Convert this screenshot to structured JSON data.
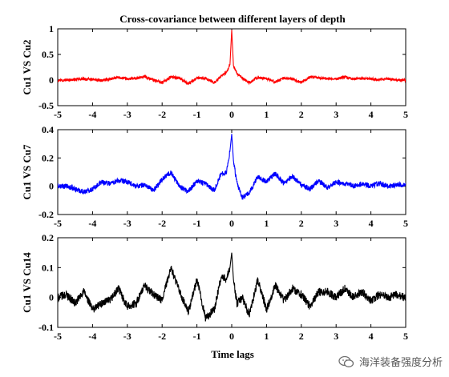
{
  "chart_data": [
    {
      "type": "line",
      "title": "Cross-covariance between different layers of depth",
      "ylabel": "Cu1 VS Cu2",
      "xlabel": "",
      "xlim": [
        -5,
        5
      ],
      "ylim": [
        -0.5,
        1
      ],
      "xticks": [
        "-5",
        "-4",
        "-3",
        "-2",
        "-1",
        "0",
        "1",
        "2",
        "3",
        "4",
        "5"
      ],
      "yticks": [
        "-0.5",
        "0",
        "0.5",
        "1"
      ],
      "color": "#ff0000",
      "series": [
        {
          "x": [
            -5.0,
            -4.75,
            -4.5,
            -4.25,
            -4.0,
            -3.75,
            -3.5,
            -3.25,
            -3.0,
            -2.75,
            -2.5,
            -2.25,
            -2.0,
            -1.75,
            -1.5,
            -1.25,
            -1.0,
            -0.75,
            -0.5,
            -0.3,
            -0.15,
            -0.05,
            0.0,
            0.05,
            0.15,
            0.3,
            0.5,
            0.75,
            1.0,
            1.25,
            1.5,
            1.75,
            2.0,
            2.25,
            2.5,
            2.75,
            3.0,
            3.25,
            3.5,
            3.75,
            4.0,
            4.25,
            4.5,
            4.75,
            5.0
          ],
          "y": [
            0.0,
            0.0,
            0.01,
            0.02,
            0.01,
            -0.01,
            0.02,
            0.05,
            0.02,
            0.03,
            0.07,
            0.0,
            -0.05,
            0.06,
            0.04,
            -0.07,
            0.04,
            0.03,
            -0.05,
            0.08,
            0.15,
            0.3,
            0.98,
            0.28,
            0.12,
            0.04,
            -0.05,
            0.05,
            0.03,
            -0.04,
            0.04,
            0.02,
            -0.05,
            0.06,
            0.04,
            0.03,
            0.02,
            0.06,
            0.02,
            0.03,
            0.02,
            0.01,
            0.02,
            0.0,
            0.0
          ]
        }
      ]
    },
    {
      "type": "line",
      "title": "",
      "ylabel": "Cu1 VS Cu7",
      "xlabel": "",
      "xlim": [
        -5,
        5
      ],
      "ylim": [
        -0.2,
        0.4
      ],
      "xticks": [
        "-5",
        "-4",
        "-3",
        "-2",
        "-1",
        "0",
        "1",
        "2",
        "3",
        "4",
        "5"
      ],
      "yticks": [
        "-0.2",
        "0",
        "0.2",
        "0.4"
      ],
      "color": "#0000ff",
      "series": [
        {
          "x": [
            -5.0,
            -4.75,
            -4.5,
            -4.25,
            -4.0,
            -3.75,
            -3.5,
            -3.25,
            -3.0,
            -2.75,
            -2.5,
            -2.25,
            -2.0,
            -1.75,
            -1.5,
            -1.25,
            -1.0,
            -0.75,
            -0.5,
            -0.3,
            -0.15,
            -0.05,
            0.0,
            0.05,
            0.15,
            0.3,
            0.5,
            0.75,
            1.0,
            1.25,
            1.5,
            1.75,
            2.0,
            2.25,
            2.5,
            2.75,
            3.0,
            3.25,
            3.5,
            3.75,
            4.0,
            4.25,
            4.5,
            4.75,
            5.0
          ],
          "y": [
            0.0,
            0.0,
            -0.02,
            -0.04,
            -0.02,
            0.03,
            0.02,
            0.04,
            0.03,
            0.0,
            0.01,
            -0.03,
            0.05,
            0.1,
            0.0,
            -0.04,
            0.04,
            0.02,
            -0.03,
            0.09,
            0.1,
            0.25,
            0.37,
            0.18,
            0.02,
            -0.08,
            -0.05,
            0.07,
            0.03,
            0.09,
            0.02,
            0.07,
            0.01,
            -0.02,
            0.04,
            -0.01,
            0.03,
            0.02,
            0.0,
            0.02,
            0.0,
            0.02,
            0.0,
            0.01,
            0.01
          ]
        }
      ]
    },
    {
      "type": "line",
      "title": "",
      "ylabel": "Cu1 VS Cu14",
      "xlabel": "Time lags",
      "xlim": [
        -5,
        5
      ],
      "ylim": [
        -0.1,
        0.2
      ],
      "xticks": [
        "-5",
        "-4",
        "-3",
        "-2",
        "-1",
        "0",
        "1",
        "2",
        "3",
        "4",
        "5"
      ],
      "yticks": [
        "-0.1",
        "0",
        "0.1",
        "0.2"
      ],
      "color": "#000000",
      "series": [
        {
          "x": [
            -5.0,
            -4.75,
            -4.5,
            -4.25,
            -4.0,
            -3.75,
            -3.5,
            -3.25,
            -3.0,
            -2.75,
            -2.5,
            -2.25,
            -2.0,
            -1.75,
            -1.5,
            -1.25,
            -1.0,
            -0.75,
            -0.5,
            -0.3,
            -0.15,
            -0.05,
            0.0,
            0.05,
            0.15,
            0.3,
            0.5,
            0.75,
            1.0,
            1.25,
            1.5,
            1.75,
            2.0,
            2.25,
            2.5,
            2.75,
            3.0,
            3.25,
            3.5,
            3.75,
            4.0,
            4.25,
            4.5,
            4.75,
            5.0
          ],
          "y": [
            0.0,
            0.01,
            -0.02,
            0.02,
            -0.04,
            -0.02,
            -0.01,
            0.03,
            -0.03,
            -0.02,
            0.04,
            0.01,
            -0.01,
            0.1,
            0.02,
            -0.05,
            0.06,
            -0.07,
            -0.04,
            0.07,
            0.06,
            0.1,
            0.15,
            0.06,
            -0.02,
            0.0,
            -0.06,
            0.06,
            -0.04,
            0.04,
            -0.01,
            0.03,
            0.01,
            -0.03,
            0.02,
            0.02,
            0.0,
            0.03,
            0.0,
            0.02,
            -0.01,
            0.01,
            0.0,
            0.01,
            0.0
          ]
        }
      ]
    }
  ],
  "watermark": {
    "text": "海洋装备强度分析",
    "icon": "wechat-icon"
  }
}
